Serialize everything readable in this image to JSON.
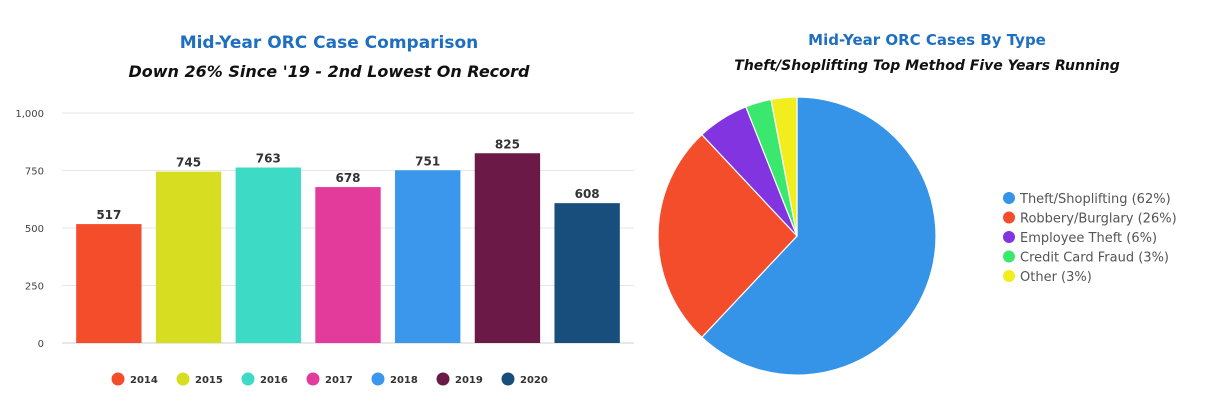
{
  "chart_data": [
    {
      "type": "bar",
      "title": "Mid-Year ORC Case Comparison",
      "subtitle": "Down 26% Since '19 - 2nd Lowest On Record",
      "categories": [
        "2014",
        "2015",
        "2016",
        "2017",
        "2018",
        "2019",
        "2020"
      ],
      "values": [
        517,
        745,
        763,
        678,
        751,
        825,
        608
      ],
      "colors": [
        "#f44d2c",
        "#d7de22",
        "#3ddbc5",
        "#e33b9b",
        "#3a97ec",
        "#6b1a47",
        "#174e7c"
      ],
      "ylim": [
        0,
        1000
      ],
      "yticks": [
        0,
        250,
        500,
        750,
        1000
      ],
      "ytick_labels": [
        "0",
        "250",
        "500",
        "750",
        "1,000"
      ],
      "grid": true,
      "legend": "bottom"
    },
    {
      "type": "pie",
      "title": "Mid-Year ORC Cases By Type",
      "subtitle": "Theft/Shoplifting Top Method Five Years Running",
      "slices": [
        {
          "label": "Theft/Shoplifting (62%)",
          "value": 62,
          "color": "#3594e8"
        },
        {
          "label": "Robbery/Burglary (26%)",
          "value": 26,
          "color": "#f44d2c"
        },
        {
          "label": "Employee Theft (6%)",
          "value": 6,
          "color": "#8234e0"
        },
        {
          "label": "Credit Card Fraud (3%)",
          "value": 3,
          "color": "#39e86c"
        },
        {
          "label": "Other (3%)",
          "value": 3,
          "color": "#f2ee1e"
        }
      ],
      "legend": "right"
    }
  ]
}
